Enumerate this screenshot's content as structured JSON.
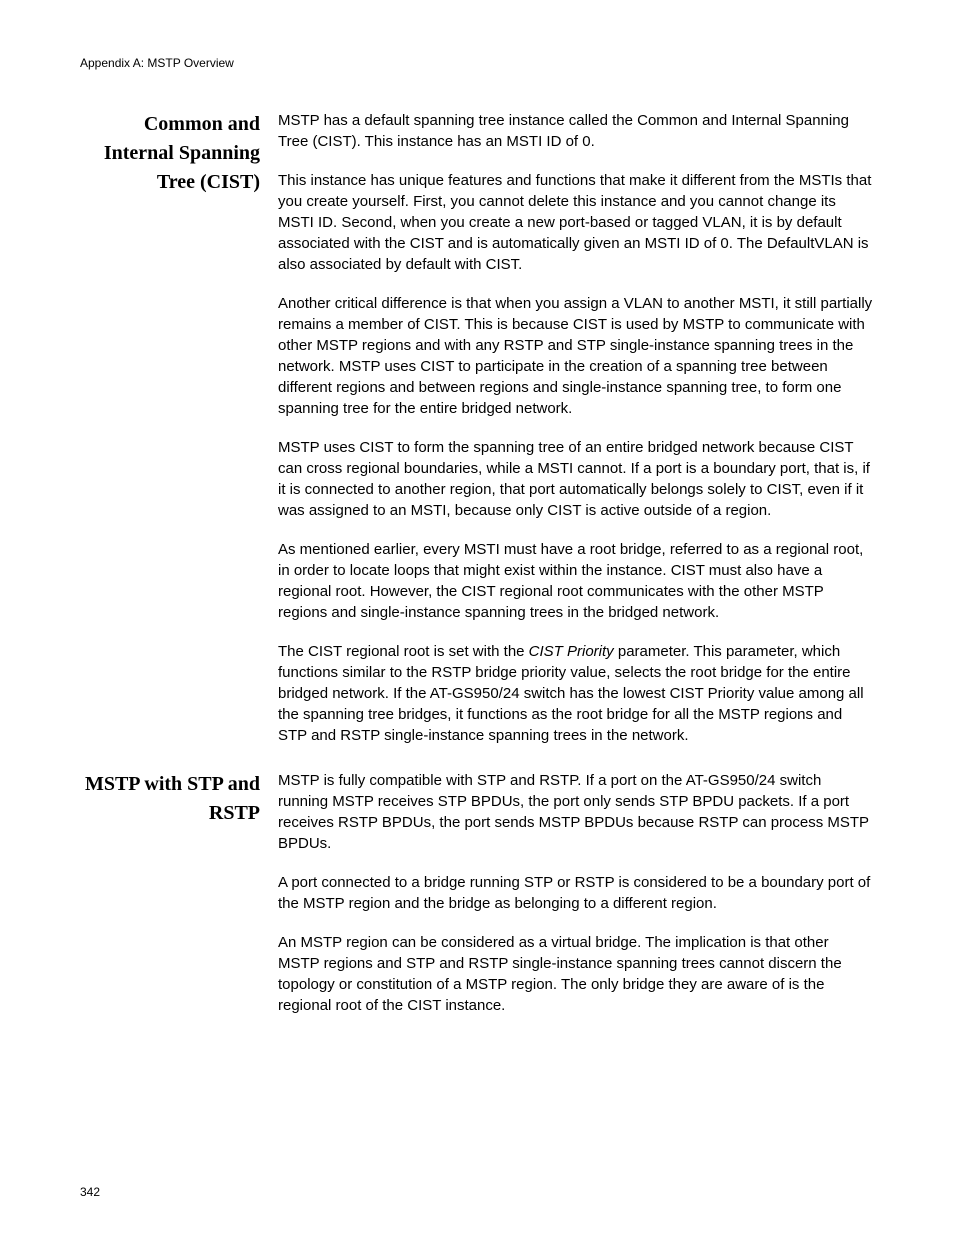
{
  "header": {
    "text": "Appendix A: MSTP Overview"
  },
  "page_number": "342",
  "sections": [
    {
      "heading": "Common and Internal Spanning Tree (CIST)",
      "paragraphs": [
        "MSTP has a default spanning tree instance called the Common and Internal Spanning Tree (CIST). This instance has an MSTI ID of 0.",
        "This instance has unique features and functions that make it different from the MSTIs that you create yourself. First, you cannot delete this instance and you cannot change its MSTI ID. Second, when you create a new port-based or tagged VLAN, it is by default associated with the CIST and is automatically given an MSTI ID of 0. The DefaultVLAN is also associated by default with CIST.",
        "Another critical difference is that when you assign a VLAN to another MSTI, it still partially remains a member of CIST. This is because CIST is used by MSTP to communicate with other MSTP regions and with any RSTP and STP single-instance spanning trees in the network. MSTP uses CIST to participate in the creation of a spanning tree between different regions and between regions and single-instance spanning tree, to form one spanning tree for the entire bridged network.",
        "MSTP uses CIST to form the spanning tree of an entire bridged network because CIST can cross regional boundaries, while a MSTI cannot. If a port is a boundary port, that is, if it is connected to another region, that port automatically belongs solely to CIST, even if it was assigned to an MSTI, because only CIST is active outside of a region.",
        "As mentioned earlier, every MSTI must have a root bridge, referred to as a regional root, in order to locate loops that might exist within the instance. CIST must also have a regional root. However, the CIST regional root communicates with the other MSTP regions and single-instance spanning trees in the bridged network."
      ],
      "paragraph_html": "The CIST regional root is set with the <span class=\"italic\">CIST Priority</span> parameter. This parameter, which functions similar to the RSTP bridge priority value, selects the root bridge for the entire bridged network. If the AT-GS950/24 switch has the lowest CIST Priority value among all the spanning tree bridges, it functions as the root bridge for all the MSTP regions and STP and RSTP single-instance spanning trees in the network."
    },
    {
      "heading": "MSTP with STP and RSTP",
      "paragraphs": [
        "MSTP is fully compatible with STP and RSTP. If a port on the AT-GS950/24 switch running MSTP receives STP BPDUs, the port only sends STP BPDU packets. If a port receives RSTP BPDUs, the port sends MSTP BPDUs because RSTP can process MSTP BPDUs.",
        "A port connected to a bridge running STP or RSTP is considered to be a boundary port of the MSTP region and the bridge as belonging to a different region.",
        "An MSTP region can be considered as a virtual bridge. The implication is that other MSTP regions and STP and RSTP single-instance spanning trees cannot discern the topology or constitution of a MSTP region. The only bridge they are aware of is the regional root of the CIST instance."
      ]
    }
  ]
}
